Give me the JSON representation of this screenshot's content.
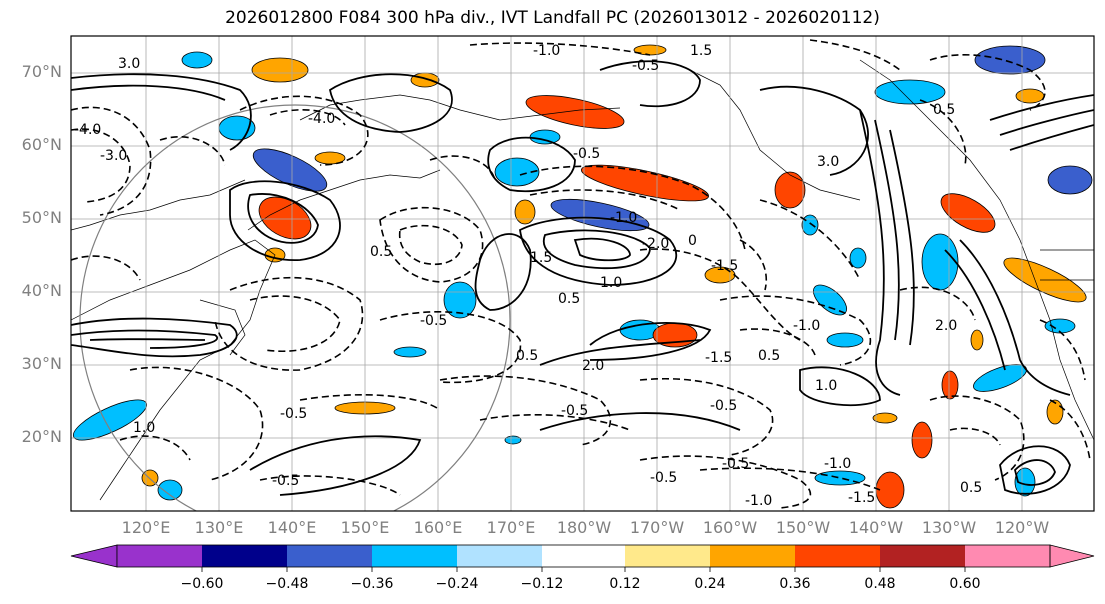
{
  "title": "2026012800 F084 300 hPa div., IVT Landfall PC (2026013012 - 2026020112)",
  "lat_labels": [
    "70°N",
    "60°N",
    "50°N",
    "40°N",
    "30°N",
    "20°N"
  ],
  "lon_labels": [
    "120°E",
    "130°E",
    "140°E",
    "150°E",
    "160°E",
    "170°E",
    "180°W",
    "170°W",
    "160°W",
    "150°W",
    "140°W",
    "130°W",
    "120°W"
  ],
  "contour_labels": [
    "3.0",
    "3.0",
    "-4.0",
    "-3.0",
    "-4.0",
    "-1.0",
    "1.5",
    "-0.5",
    "0.5",
    "-1.0",
    "-2.0",
    "-0.5",
    "1.5",
    "1.0",
    "0.5",
    "-0.5",
    "0.5",
    "-0.5",
    "2.0",
    "-1.5",
    "0.5",
    "-0.5",
    "-1.0",
    "-1.5",
    "0",
    "-0.5",
    "-1.0",
    "-0.5",
    "1.0",
    "-1.0",
    "-1.5",
    "0.5",
    "0.5",
    "2.0",
    "-0.5",
    "1.0",
    "-0.5"
  ],
  "colorbar": {
    "ticks": [
      "−0.60",
      "−0.48",
      "−0.36",
      "−0.24",
      "−0.12",
      "0.12",
      "0.24",
      "0.36",
      "0.48",
      "0.60"
    ],
    "colors": [
      "#9932CC",
      "#00008B",
      "#3A5FCD",
      "#00BFFF",
      "#B0E2FF",
      "#FFFFFF",
      "#FFE98B",
      "#FFA500",
      "#FF4500",
      "#B22222",
      "#FF8AB1"
    ]
  }
}
